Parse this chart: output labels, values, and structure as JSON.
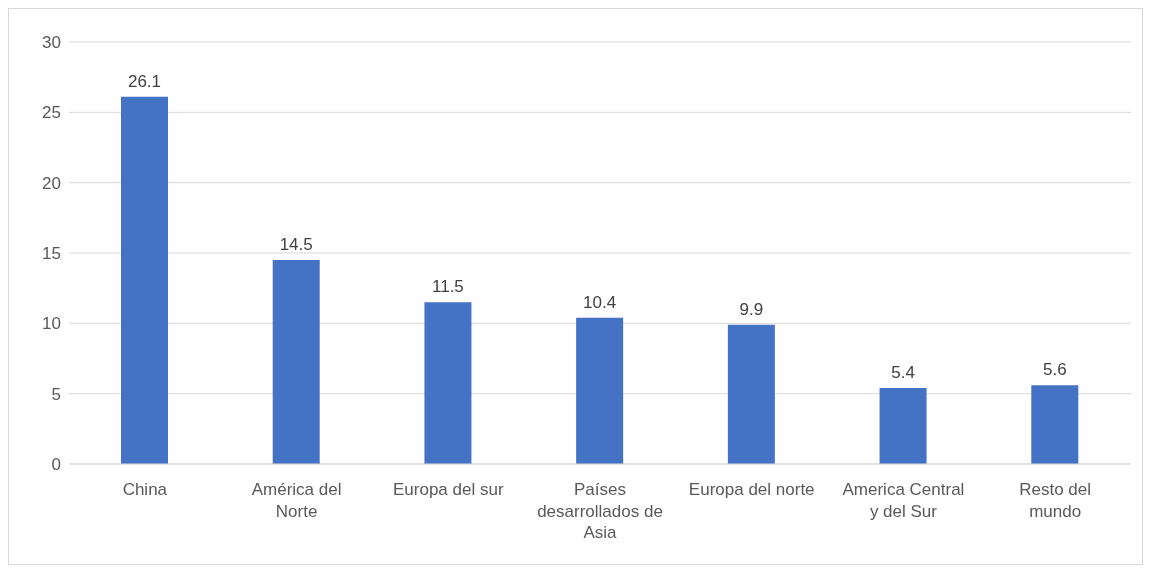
{
  "chart_data": {
    "type": "bar",
    "categories": [
      "China",
      "América del Norte",
      "Europa del sur",
      "Países desarrollados de Asia",
      "Europa del norte",
      "America Central y del Sur",
      "Resto del mundo"
    ],
    "values": [
      26.1,
      14.5,
      11.5,
      10.4,
      9.9,
      5.4,
      5.6
    ],
    "color": "#4472c4",
    "ylim": [
      0,
      30
    ],
    "yticks": [
      0,
      5,
      10,
      15,
      20,
      25,
      30
    ],
    "grid": "y",
    "data_labels": true,
    "legend": false
  }
}
